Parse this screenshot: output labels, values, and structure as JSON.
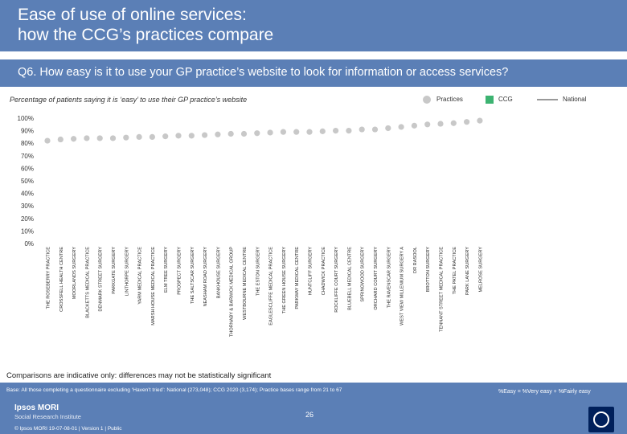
{
  "header": {
    "title_line1": "Ease of use of online services:",
    "title_line2": "how the CCG’s practices compare"
  },
  "question": "Q6. How easy is it to use your GP practice’s website to look for information or access services?",
  "subtitle": "Percentage of patients saying it is ‘easy’ to use their GP practice’s website",
  "legend": {
    "practices": "Practices",
    "ccg": "CCG",
    "national": "National"
  },
  "colors": {
    "header": "#5b7fb6",
    "practice_dot": "#c8c8c8",
    "ccg": "#3cb371",
    "national": "#999999"
  },
  "chart_data": {
    "type": "scatter",
    "categories": [
      "THE ROSEBERRY PRACTICE",
      "CROSSFELL HEALTH CENTRE",
      "MOORLANDS SURGERY",
      "BLACKETTS MEDICAL PRACTICE",
      "DENMARK STREET SURGERY",
      "PARKGATE SURGERY",
      "LINTHORPE SURGERY",
      "YARM MEDICAL PRACTICE",
      "MARSH HOUSE MEDICAL PRACTICE",
      "ELM TREE SURGERY",
      "PROSPECT SURGERY",
      "THE SALTSCAR SURGERY",
      "NEASHAM ROAD SURGERY",
      "BANKHOUSE SURGERY",
      "THORNABY & BARWICK MEDICAL GROUP",
      "WESTBOURNE MEDICAL CENTRE",
      "THE ESTON SURGERY",
      "EAGLESCLIFFE MEDICAL PRACTICE",
      "THE GREEN HOUSE SURGERY",
      "PARKWAY MEDICAL CENTRE",
      "HUNTCLIFF SURGERY",
      "CHADWICK PRACTICE",
      "ROCKLIFFE COURT SURGERY",
      "BLUEBELL MEDICAL CENTRE",
      "SPRINGWOOD SURGERY",
      "ORCHARD COURT SURGERY",
      "THE RAVENSCAR SURGERY",
      "WEST VIEW MILLENIUM SURGERY A",
      "DR RASOOL",
      "BROTTON SURGERY",
      "TENNANT STREET MEDICAL PRACTICE",
      "THE PATEL PRACTICE",
      "PARK LANE SURGERY",
      "MELROSE SURGERY"
    ],
    "values": [
      82,
      83,
      83.5,
      84,
      84,
      84,
      84.5,
      85,
      85,
      85.5,
      86,
      86,
      86.5,
      87,
      87.5,
      87.5,
      88,
      88.5,
      89,
      89,
      89,
      89.5,
      90,
      90,
      91,
      91,
      92,
      93,
      94,
      95,
      95.5,
      96,
      97,
      98
    ],
    "ylim": [
      0,
      100
    ],
    "yticks": [
      "0%",
      "10%",
      "20%",
      "30%",
      "40%",
      "50%",
      "60%",
      "70%",
      "80%",
      "90%",
      "100%"
    ],
    "grid": false
  },
  "footnote": "Comparisons are indicative only: differences may not be statistically significant",
  "footer": {
    "base": "Base: All those completing a questionnaire excluding ‘Haven’t tried’: National (273,048); CCG 2020 (3,174); Practice bases range from 21 to 67",
    "easy_def": "%Easy = %Very easy + %Fairly easy",
    "brand": "Ipsos MORI",
    "institute": "Social Research Institute",
    "page": "26",
    "copyright": "© Ipsos MORI     19-07-08-01 | Version 1 | Public"
  }
}
